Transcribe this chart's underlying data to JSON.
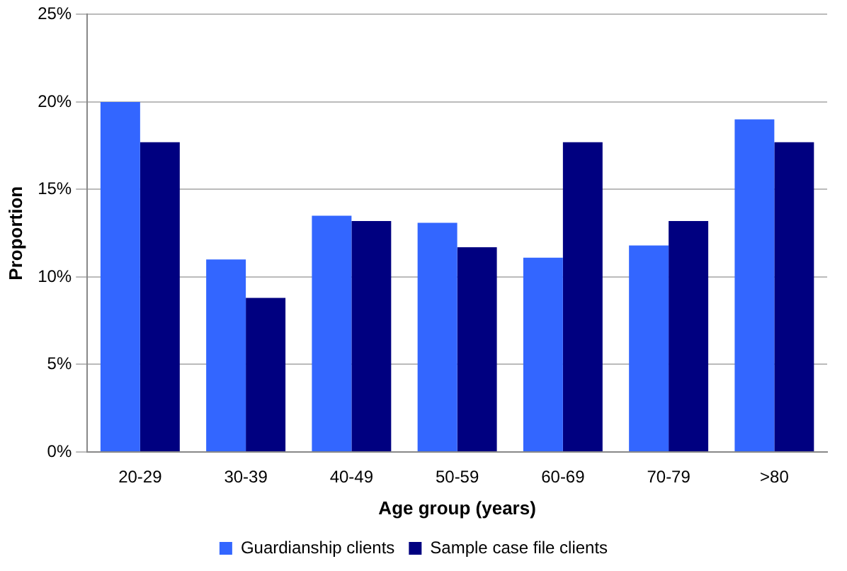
{
  "chart_data": {
    "type": "bar",
    "xlabel": "Age group (years)",
    "ylabel": "Proportion",
    "categories": [
      "20-29",
      "30-39",
      "40-49",
      "50-59",
      "60-69",
      "70-79",
      ">80"
    ],
    "series": [
      {
        "name": "Guardianship clients",
        "color": "#3366ff",
        "values": [
          20.0,
          11.0,
          13.5,
          13.1,
          11.1,
          11.8,
          19.0
        ]
      },
      {
        "name": "Sample case file clients",
        "color": "#000080",
        "values": [
          17.7,
          8.8,
          13.2,
          11.7,
          17.7,
          13.2,
          17.7
        ]
      }
    ],
    "ylim": [
      0,
      25
    ],
    "yticks": [
      {
        "value": 0,
        "label": "0%"
      },
      {
        "value": 5,
        "label": "5%"
      },
      {
        "value": 10,
        "label": "10%"
      },
      {
        "value": 15,
        "label": "15%"
      },
      {
        "value": 20,
        "label": "20%"
      },
      {
        "value": 25,
        "label": "25%"
      }
    ],
    "grid": "y",
    "legend": "bottom"
  }
}
